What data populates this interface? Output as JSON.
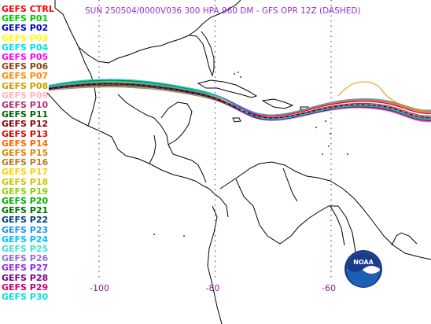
{
  "title": "SUN 250504/0000V036  300 HPA 960 DM - GFS OPR 12Z (DASHED)",
  "legend": [
    {
      "label": "GEFS CTRL",
      "color": "#ff0000"
    },
    {
      "label": "GEFS P01",
      "color": "#00cc00"
    },
    {
      "label": "GEFS P02",
      "color": "#0000cc"
    },
    {
      "label": "GEFS P03",
      "color": "#ffff00"
    },
    {
      "label": "GEFS P04",
      "color": "#00e5e5"
    },
    {
      "label": "GEFS P05",
      "color": "#ff00ff"
    },
    {
      "label": "GEFS P06",
      "color": "#8b4513"
    },
    {
      "label": "GEFS P07",
      "color": "#ff8c00"
    },
    {
      "label": "GEFS P08",
      "color": "#c8a000"
    },
    {
      "label": "GEFS P09",
      "color": "#ffb6c1"
    },
    {
      "label": "GEFS P10",
      "color": "#b0306a"
    },
    {
      "label": "GEFS P11",
      "color": "#006400"
    },
    {
      "label": "GEFS P12",
      "color": "#8b0000"
    },
    {
      "label": "GEFS P13",
      "color": "#e00000"
    },
    {
      "label": "GEFS P14",
      "color": "#ff6600"
    },
    {
      "label": "GEFS P15",
      "color": "#e08000"
    },
    {
      "label": "GEFS P16",
      "color": "#c07820"
    },
    {
      "label": "GEFS P17",
      "color": "#ffd000"
    },
    {
      "label": "GEFS P18",
      "color": "#d4c000"
    },
    {
      "label": "GEFS P19",
      "color": "#90d000"
    },
    {
      "label": "GEFS P20",
      "color": "#00b000"
    },
    {
      "label": "GEFS P21",
      "color": "#007000"
    },
    {
      "label": "GEFS P22",
      "color": "#004080"
    },
    {
      "label": "GEFS P23",
      "color": "#1e90ff"
    },
    {
      "label": "GEFS P24",
      "color": "#00bfff"
    },
    {
      "label": "GEFS P25",
      "color": "#40e0d0"
    },
    {
      "label": "GEFS P26",
      "color": "#9370db"
    },
    {
      "label": "GEFS P27",
      "color": "#8a2be2"
    },
    {
      "label": "GEFS P28",
      "color": "#800080"
    },
    {
      "label": "GEFS P29",
      "color": "#cc0066"
    },
    {
      "label": "GEFS P30",
      "color": "#00e0e0"
    }
  ],
  "lon_labels": [
    {
      "label": "-100",
      "lon": -100
    },
    {
      "label": "-80",
      "lon": -80
    },
    {
      "label": "-60",
      "lon": -60
    }
  ],
  "logo": {
    "text": "NOAA"
  }
}
